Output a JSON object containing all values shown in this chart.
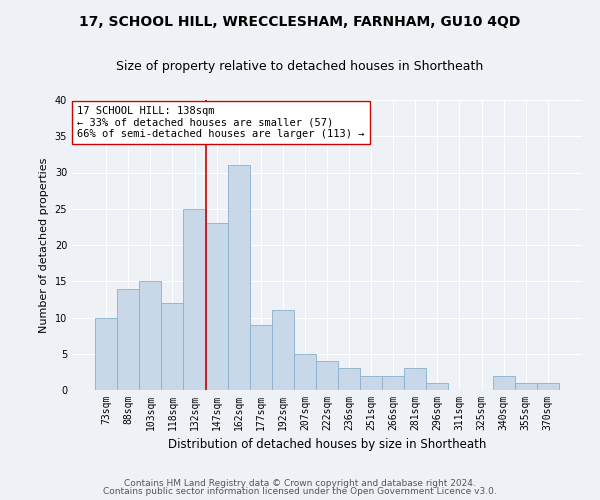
{
  "title1": "17, SCHOOL HILL, WRECCLESHAM, FARNHAM, GU10 4QD",
  "title2": "Size of property relative to detached houses in Shortheath",
  "xlabel": "Distribution of detached houses by size in Shortheath",
  "ylabel": "Number of detached properties",
  "categories": [
    "73sqm",
    "88sqm",
    "103sqm",
    "118sqm",
    "132sqm",
    "147sqm",
    "162sqm",
    "177sqm",
    "192sqm",
    "207sqm",
    "222sqm",
    "236sqm",
    "251sqm",
    "266sqm",
    "281sqm",
    "296sqm",
    "311sqm",
    "325sqm",
    "340sqm",
    "355sqm",
    "370sqm"
  ],
  "values": [
    10,
    14,
    15,
    12,
    25,
    23,
    31,
    9,
    11,
    5,
    4,
    3,
    2,
    2,
    3,
    1,
    0,
    0,
    2,
    1,
    1
  ],
  "bar_color": "#c8d8e8",
  "bar_edge_color": "#8ab0cc",
  "vline_x": 4.5,
  "vline_color": "#cc0000",
  "annotation_text": "17 SCHOOL HILL: 138sqm\n← 33% of detached houses are smaller (57)\n66% of semi-detached houses are larger (113) →",
  "annotation_box_color": "#ffffff",
  "annotation_box_edge": "#cc0000",
  "ylim": [
    0,
    40
  ],
  "yticks": [
    0,
    5,
    10,
    15,
    20,
    25,
    30,
    35,
    40
  ],
  "footer1": "Contains HM Land Registry data © Crown copyright and database right 2024.",
  "footer2": "Contains public sector information licensed under the Open Government Licence v3.0.",
  "bg_color": "#eef2f7",
  "plot_bg_color": "#eef2f7",
  "grid_color": "#ffffff",
  "title1_fontsize": 10,
  "title2_fontsize": 9,
  "xlabel_fontsize": 8.5,
  "ylabel_fontsize": 8,
  "tick_fontsize": 7,
  "annot_fontsize": 7.5,
  "footer_fontsize": 6.5
}
